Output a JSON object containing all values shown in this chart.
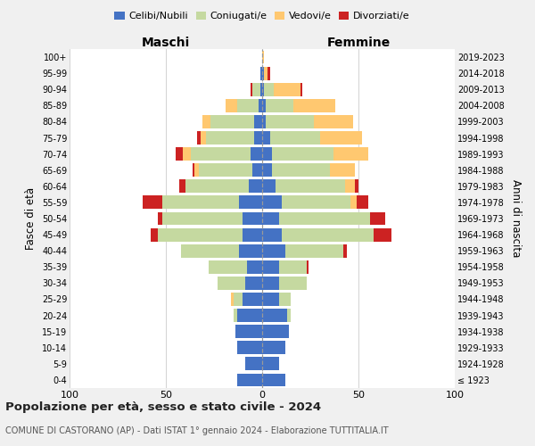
{
  "age_groups": [
    "100+",
    "95-99",
    "90-94",
    "85-89",
    "80-84",
    "75-79",
    "70-74",
    "65-69",
    "60-64",
    "55-59",
    "50-54",
    "45-49",
    "40-44",
    "35-39",
    "30-34",
    "25-29",
    "20-24",
    "15-19",
    "10-14",
    "5-9",
    "0-4"
  ],
  "birth_years": [
    "≤ 1923",
    "1924-1928",
    "1929-1933",
    "1934-1938",
    "1939-1943",
    "1944-1948",
    "1949-1953",
    "1954-1958",
    "1959-1963",
    "1964-1968",
    "1969-1973",
    "1974-1978",
    "1979-1983",
    "1984-1988",
    "1989-1993",
    "1994-1998",
    "1999-2003",
    "2004-2008",
    "2009-2013",
    "2014-2018",
    "2019-2023"
  ],
  "colors": {
    "celibe": "#4472c4",
    "coniugato": "#c5d9a0",
    "vedovo": "#ffc870",
    "divorziato": "#cc2222"
  },
  "maschi": {
    "celibe": [
      0,
      1,
      1,
      2,
      4,
      4,
      6,
      5,
      7,
      12,
      10,
      10,
      12,
      8,
      9,
      10,
      13,
      14,
      13,
      9,
      13
    ],
    "coniugato": [
      0,
      0,
      4,
      11,
      23,
      25,
      31,
      28,
      33,
      40,
      42,
      44,
      30,
      20,
      14,
      5,
      2,
      0,
      0,
      0,
      0
    ],
    "vedovo": [
      0,
      0,
      0,
      6,
      4,
      3,
      4,
      2,
      0,
      0,
      0,
      0,
      0,
      0,
      0,
      1,
      0,
      0,
      0,
      0,
      0
    ],
    "divorziato": [
      0,
      0,
      1,
      0,
      0,
      2,
      4,
      1,
      3,
      10,
      2,
      4,
      0,
      0,
      0,
      0,
      0,
      0,
      0,
      0,
      0
    ]
  },
  "femmine": {
    "nubile": [
      0,
      1,
      1,
      2,
      2,
      4,
      5,
      5,
      7,
      10,
      9,
      10,
      12,
      9,
      9,
      9,
      13,
      14,
      12,
      9,
      12
    ],
    "coniugata": [
      0,
      0,
      5,
      14,
      25,
      26,
      32,
      30,
      36,
      36,
      47,
      48,
      30,
      14,
      14,
      6,
      2,
      0,
      0,
      0,
      0
    ],
    "vedova": [
      1,
      2,
      14,
      22,
      20,
      22,
      18,
      13,
      5,
      3,
      0,
      0,
      0,
      0,
      0,
      0,
      0,
      0,
      0,
      0,
      0
    ],
    "divorziata": [
      0,
      1,
      1,
      0,
      0,
      0,
      0,
      0,
      2,
      6,
      8,
      9,
      2,
      1,
      0,
      0,
      0,
      0,
      0,
      0,
      0
    ]
  },
  "title": "Popolazione per età, sesso e stato civile - 2024",
  "subtitle": "COMUNE DI CASTORANO (AP) - Dati ISTAT 1° gennaio 2024 - Elaborazione TUTTITALIA.IT",
  "xlabel_left": "Maschi",
  "xlabel_right": "Femmine",
  "ylabel_left": "Fasce di età",
  "ylabel_right": "Anni di nascita",
  "xlim": 100,
  "background_color": "#f0f0f0",
  "plot_bg": "#ffffff",
  "grid_color": "#cccccc"
}
